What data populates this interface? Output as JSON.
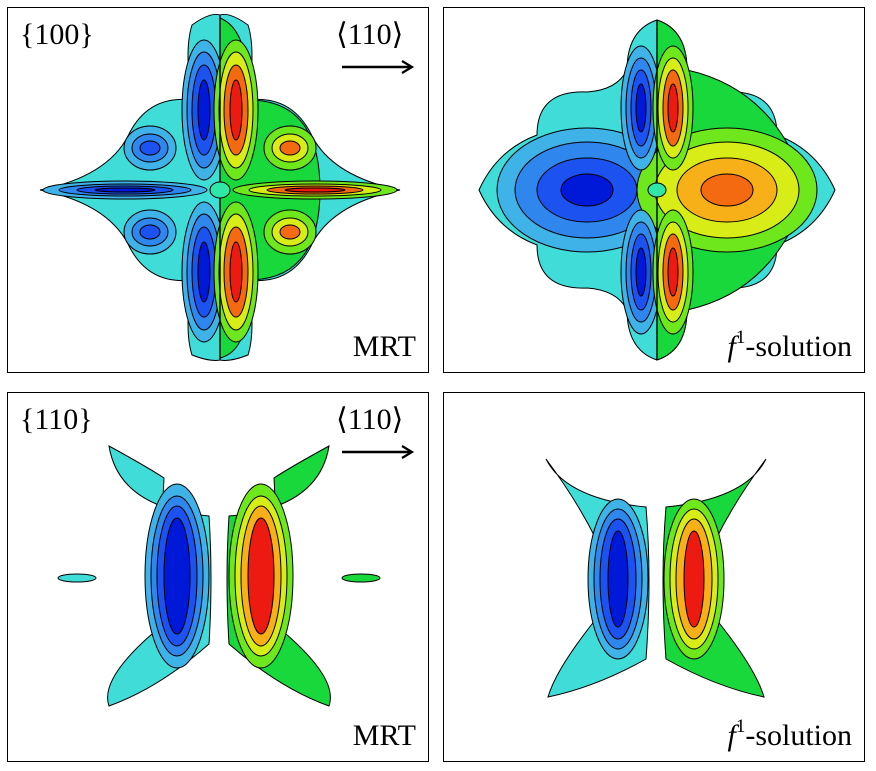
{
  "panels": [
    {
      "plane_label": "{100}",
      "direction_label": "⟨110⟩",
      "method_label": "MRT"
    },
    {
      "plane_label": "",
      "direction_label": "",
      "method_label": "-solution",
      "method_symbol": "f",
      "method_superscript": "1"
    },
    {
      "plane_label": "{110}",
      "direction_label": "⟨110⟩",
      "method_label": "MRT"
    },
    {
      "plane_label": "",
      "direction_label": "",
      "method_label": "-solution",
      "method_symbol": "f",
      "method_superscript": "1"
    }
  ],
  "colormap": [
    "#0018d8",
    "#1c52f0",
    "#2f86ec",
    "#3fb2e8",
    "#3fdcd8",
    "#2fe8a8",
    "#18d83c",
    "#6ee81c",
    "#d8ec18",
    "#f8b018",
    "#f46a10",
    "#ec1a10"
  ],
  "arrow_icon": "right-arrow-icon"
}
